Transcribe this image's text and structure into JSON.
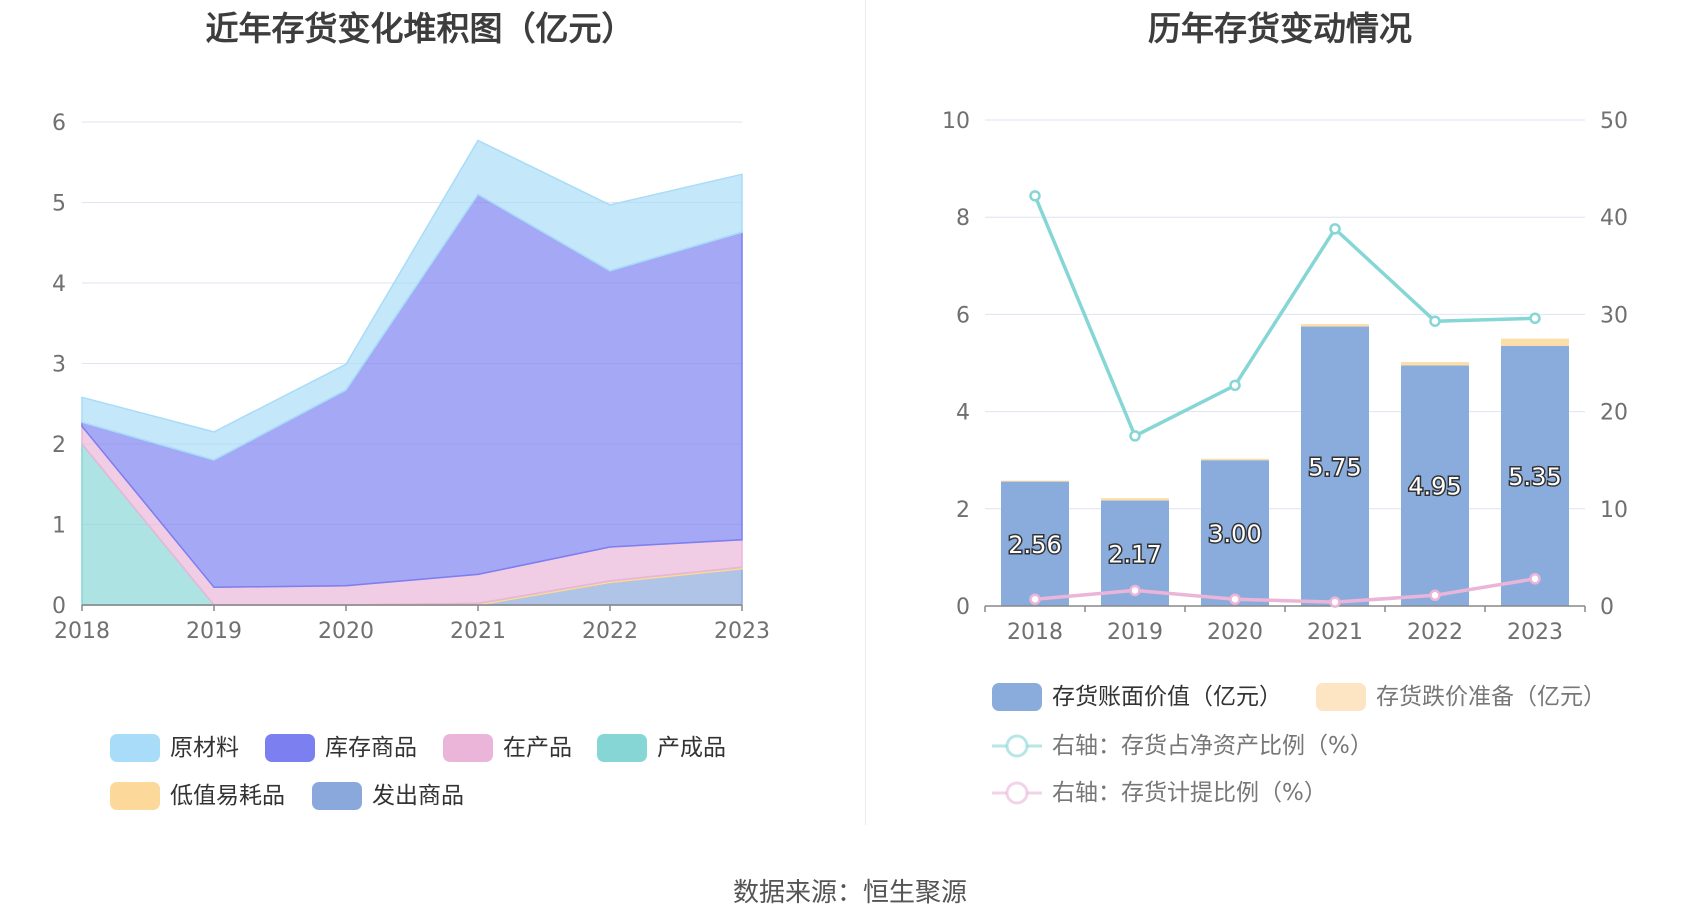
{
  "left_title": "近年存货变化堆积图（亿元）",
  "right_title": "历年存货变动情况",
  "source": "数据来源：恒生聚源",
  "chart_data": [
    {
      "type": "area",
      "title": "近年存货变化堆积图（亿元）",
      "stacked": true,
      "x": [
        "2018",
        "2019",
        "2020",
        "2021",
        "2022",
        "2023"
      ],
      "ylim": [
        0,
        6
      ],
      "yticks": [
        "0",
        "1",
        "2",
        "3",
        "4",
        "5",
        "6"
      ],
      "grid": true,
      "legend_position": "bottom",
      "series": [
        {
          "name": "原材料",
          "color": "#a8dcf8",
          "values": [
            0.31,
            0.35,
            0.32,
            0.67,
            0.82,
            0.72
          ]
        },
        {
          "name": "库存商品",
          "color": "#7b7ff0",
          "values": [
            0.05,
            1.58,
            2.43,
            4.72,
            3.43,
            3.82
          ]
        },
        {
          "name": "在产品",
          "color": "#eab5d8",
          "values": [
            0.22,
            0.22,
            0.24,
            0.36,
            0.42,
            0.34
          ]
        },
        {
          "name": "产成品",
          "color": "#86d6d6",
          "values": [
            2.0,
            0.0,
            0.0,
            0.0,
            0.0,
            0.0
          ]
        },
        {
          "name": "低值易耗品",
          "color": "#fcd89a",
          "values": [
            0.0,
            0.0,
            0.0,
            0.02,
            0.02,
            0.02
          ]
        },
        {
          "name": "发出商品",
          "color": "#8aa8dc",
          "values": [
            0.0,
            0.0,
            0.0,
            0.0,
            0.28,
            0.45
          ]
        }
      ]
    },
    {
      "type": "bar",
      "title": "历年存货变动情况",
      "stacked": true,
      "categories": [
        "2018",
        "2019",
        "2020",
        "2021",
        "2022",
        "2023"
      ],
      "ylim": [
        0,
        10
      ],
      "yticks": [
        "0",
        "2",
        "4",
        "6",
        "8",
        "10"
      ],
      "y2lim": [
        0,
        50
      ],
      "y2ticks": [
        "0",
        "10",
        "20",
        "30",
        "40",
        "50"
      ],
      "grid": true,
      "legend_position": "bottom",
      "series": [
        {
          "name": "存货账面价值（亿元）",
          "color": "#8aacdc",
          "values": [
            2.56,
            2.17,
            3.0,
            5.75,
            4.95,
            5.35
          ],
          "labels": [
            "2.56",
            "2.17",
            "3.00",
            "5.75",
            "4.95",
            "5.35"
          ]
        },
        {
          "name": "存货跌价准备（亿元）",
          "color": "#fde4c2",
          "values": [
            0.02,
            0.05,
            0.03,
            0.05,
            0.07,
            0.15
          ]
        },
        {
          "name": "右轴：存货占净资产比例（%）",
          "type": "line",
          "axis": "right",
          "color": "#86d6d6",
          "values": [
            42.2,
            17.5,
            22.7,
            38.8,
            29.3,
            29.6
          ]
        },
        {
          "name": "右轴：存货计提比例（%）",
          "type": "line",
          "axis": "right",
          "color": "#eab5d8",
          "values": [
            0.7,
            1.6,
            0.7,
            0.4,
            1.1,
            2.8
          ]
        }
      ]
    }
  ]
}
